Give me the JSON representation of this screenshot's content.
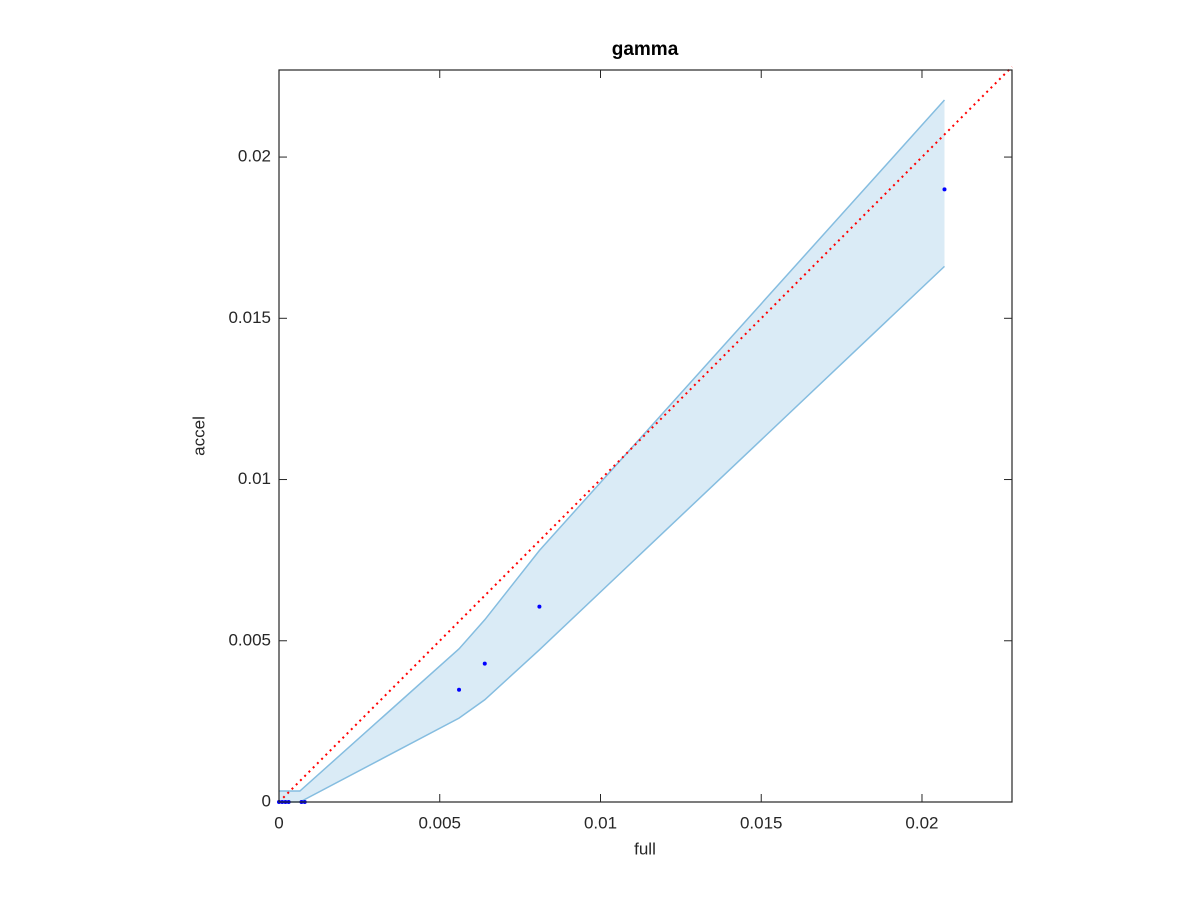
{
  "chart_data": {
    "type": "scatter",
    "title": "gamma",
    "x_label": "full",
    "y_label": "accel",
    "xlim": [
      0,
      0.0228
    ],
    "ylim": [
      0,
      0.0227
    ],
    "xticks": [
      0,
      0.005,
      0.01,
      0.015,
      0.02
    ],
    "yticks": [
      0,
      0.005,
      0.01,
      0.015,
      0.02
    ],
    "color": "#0000ff",
    "x": [
      0,
      0.0001,
      0.0002,
      0.0003,
      0.0007,
      0.0008,
      0.0056,
      0.0064,
      0.0081,
      0.0207
    ],
    "values": [
      0,
      0,
      0,
      0,
      0,
      0,
      0.00348,
      0.00429,
      0.00606,
      0.019
    ],
    "band": {
      "color": "#85bde0",
      "x": [
        0,
        0.00065,
        0.0056,
        0.0064,
        0.0081,
        0.0207
      ],
      "upper": [
        0.00034,
        0.00034,
        0.00475,
        0.00565,
        0.0078,
        0.02177
      ],
      "lower": [
        0,
        0,
        0.0026,
        0.00317,
        0.00472,
        0.01661
      ]
    },
    "reference_line": {
      "color": "#ff0000",
      "x": [
        0,
        0.0228
      ],
      "values": [
        0,
        0.0228
      ]
    }
  }
}
